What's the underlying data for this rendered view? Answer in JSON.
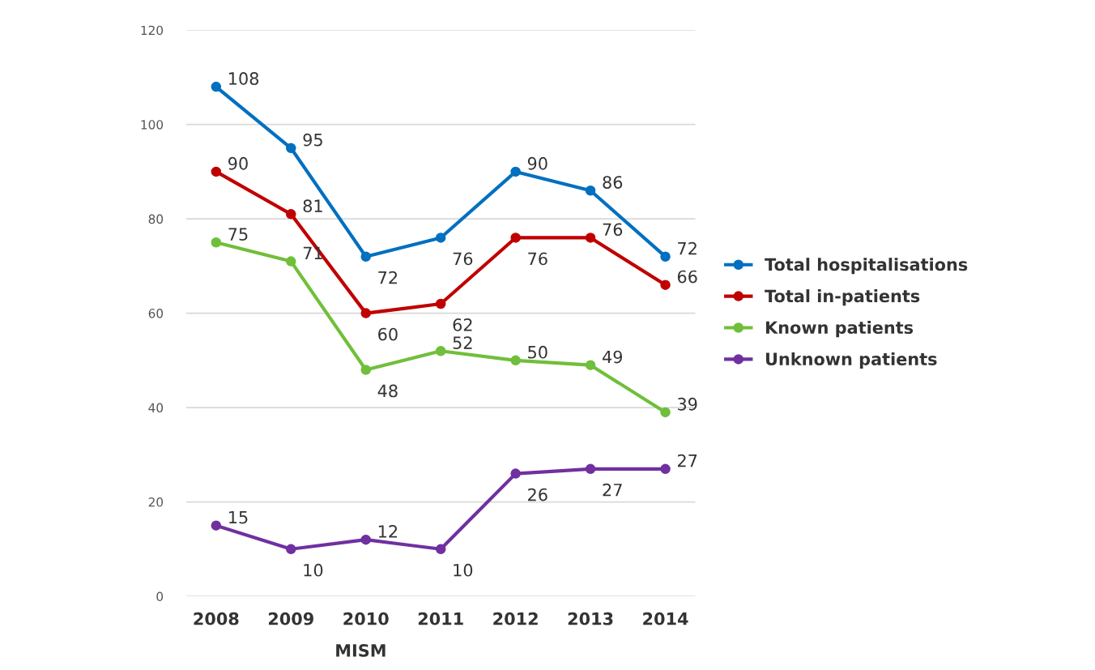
{
  "chart_data": {
    "type": "line",
    "categories": [
      "2008",
      "2009",
      "2010",
      "2011",
      "2012",
      "2013",
      "2014"
    ],
    "series": [
      {
        "name": "Total hospitalisations",
        "color": "#0070c0",
        "values": [
          108,
          95,
          72,
          76,
          90,
          86,
          72
        ]
      },
      {
        "name": "Total in-patients",
        "color": "#c00000",
        "values": [
          90,
          81,
          60,
          62,
          76,
          76,
          66
        ]
      },
      {
        "name": "Known patients",
        "color": "#70bf3a",
        "values": [
          75,
          71,
          48,
          52,
          50,
          49,
          39
        ]
      },
      {
        "name": "Unknown patients",
        "color": "#7030a0",
        "values": [
          15,
          10,
          12,
          10,
          26,
          27,
          27
        ]
      }
    ],
    "ylim": [
      0,
      120
    ],
    "yticks": [
      0,
      20,
      40,
      60,
      80,
      100,
      120
    ],
    "grid": "y",
    "legend": "right",
    "marker": "circle",
    "line_style": "solid",
    "data_labels": true,
    "annotations": [
      "MISM"
    ]
  }
}
